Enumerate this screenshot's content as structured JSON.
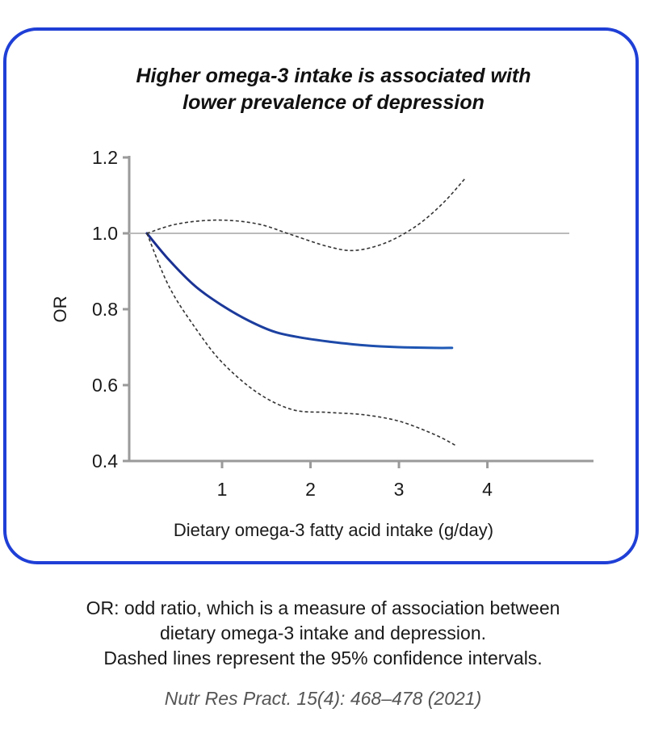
{
  "card": {
    "border_color": "#1f3fd6"
  },
  "chart_data": {
    "type": "line",
    "title_lines": [
      "Higher omega-3 intake is associated with",
      "lower prevalence of depression"
    ],
    "xlabel": "Dietary omega-3 fatty acid intake (g/day)",
    "ylabel": "OR",
    "x_ticks": [
      {
        "value": 1,
        "label": "1"
      },
      {
        "value": 2,
        "label": "2"
      },
      {
        "value": 3,
        "label": "3"
      },
      {
        "value": 4,
        "label": "4"
      }
    ],
    "y_ticks": [
      {
        "value": 0.4,
        "label": "0.4"
      },
      {
        "value": 0.6,
        "label": "0.6"
      },
      {
        "value": 0.8,
        "label": "0.8"
      },
      {
        "value": 1.0,
        "label": "1.0"
      },
      {
        "value": 1.2,
        "label": "1.2"
      }
    ],
    "xlim": [
      -0.05,
      5.2
    ],
    "ylim": [
      0.4,
      1.2
    ],
    "reference_line": {
      "y": 1.0,
      "color": "#bbbbbb"
    },
    "grid": false,
    "series": [
      {
        "role": "estimate",
        "style": "solid",
        "color": "#1a2d8f",
        "color_end": "#1f5bb8",
        "x": [
          0.15,
          0.4,
          0.7,
          1.0,
          1.3,
          1.6,
          1.9,
          2.2,
          2.6,
          3.0,
          3.4,
          3.6
        ],
        "y": [
          1.0,
          0.93,
          0.86,
          0.81,
          0.77,
          0.74,
          0.725,
          0.715,
          0.705,
          0.7,
          0.698,
          0.698
        ]
      },
      {
        "role": "ci_upper",
        "style": "dashed",
        "color": "#333333",
        "x": [
          0.15,
          0.5,
          0.95,
          1.4,
          1.8,
          2.2,
          2.5,
          2.85,
          3.2,
          3.5,
          3.75
        ],
        "y": [
          1.0,
          1.025,
          1.035,
          1.025,
          0.995,
          0.965,
          0.955,
          0.975,
          1.02,
          1.08,
          1.145
        ]
      },
      {
        "role": "ci_lower",
        "style": "dashed",
        "color": "#333333",
        "x": [
          0.15,
          0.4,
          0.7,
          1.0,
          1.4,
          1.8,
          2.2,
          2.6,
          3.0,
          3.4,
          3.65
        ],
        "y": [
          1.0,
          0.86,
          0.75,
          0.66,
          0.58,
          0.535,
          0.528,
          0.522,
          0.505,
          0.47,
          0.44
        ]
      }
    ]
  },
  "caption_lines": [
    "OR: odd ratio, which is a measure of association between",
    "dietary omega-3 intake and depression.",
    "Dashed lines represent the 95% confidence intervals."
  ],
  "source": "Nutr Res Pract. 15(4): 468–478 (2021)"
}
